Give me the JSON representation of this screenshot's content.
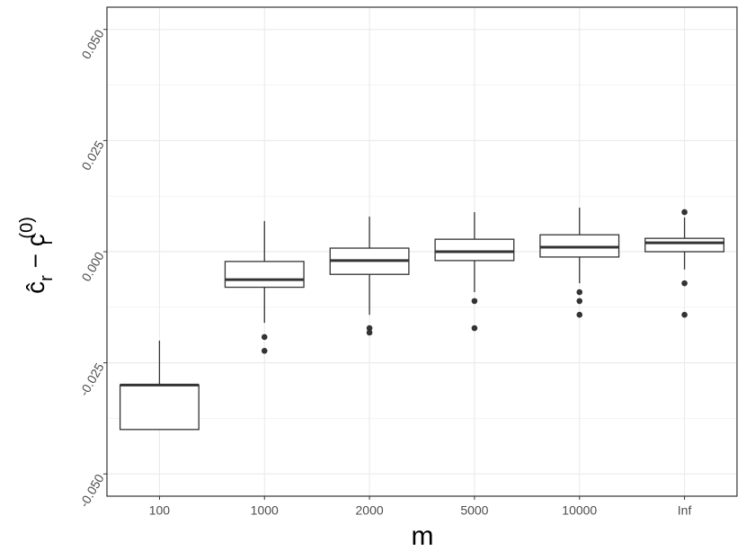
{
  "chart_data": {
    "type": "box",
    "x_label": "m",
    "y_label_parts": [
      "ĉ",
      "r",
      " − ",
      "c",
      "r",
      "(0)"
    ],
    "categories": [
      "100",
      "1000",
      "2000",
      "5000",
      "10000",
      "Inf"
    ],
    "boxes": [
      {
        "whisker_low": -0.04,
        "q1": -0.04,
        "median": -0.03,
        "q3": -0.03,
        "whisker_high": -0.02,
        "outliers": []
      },
      {
        "whisker_low": -0.016,
        "q1": -0.008,
        "median": -0.0063,
        "q3": -0.0022,
        "whisker_high": 0.0069,
        "outliers": [
          -0.0192,
          -0.0223
        ]
      },
      {
        "whisker_low": -0.0142,
        "q1": -0.0051,
        "median": -0.002,
        "q3": 0.0008,
        "whisker_high": 0.0079,
        "outliers": [
          -0.0172,
          -0.0182
        ]
      },
      {
        "whisker_low": -0.0091,
        "q1": -0.002,
        "median": 0.0,
        "q3": 0.0028,
        "whisker_high": 0.0089,
        "outliers": [
          -0.0111,
          -0.0172
        ]
      },
      {
        "whisker_low": -0.0071,
        "q1": -0.0012,
        "median": 0.001,
        "q3": 0.0038,
        "whisker_high": 0.0099,
        "outliers": [
          -0.0091,
          -0.0111,
          -0.0142
        ]
      },
      {
        "whisker_low": -0.004,
        "q1": 0.0,
        "median": 0.002,
        "q3": 0.003,
        "whisker_high": 0.0077,
        "outliers": [
          0.0089,
          -0.0071,
          -0.0142
        ]
      }
    ],
    "ylim": [
      -0.055,
      0.055
    ],
    "yticks": [
      {
        "value": -0.05,
        "label": "-0.050"
      },
      {
        "value": -0.025,
        "label": "-0.025"
      },
      {
        "value": 0,
        "label": "0.000"
      },
      {
        "value": 0.025,
        "label": "0.025"
      },
      {
        "value": 0.05,
        "label": "0.050"
      }
    ],
    "minor_yticks": [
      -0.0375,
      -0.0125,
      0.0125,
      0.0375
    ],
    "grid": true,
    "color": "#333333"
  }
}
